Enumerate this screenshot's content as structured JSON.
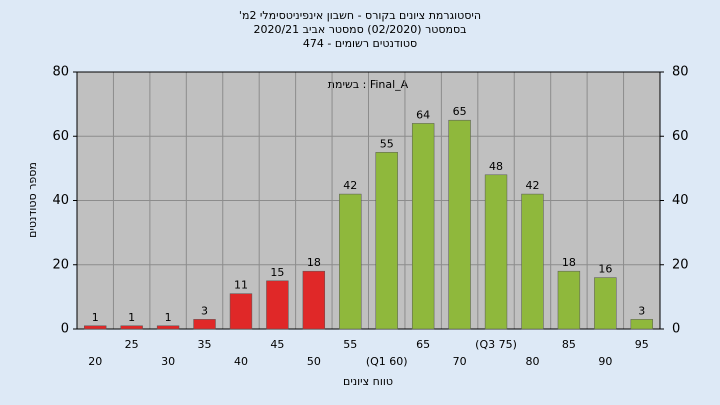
{
  "chart_data": {
    "type": "bar",
    "title": [
      "'היסטוגרמת ציונים בקורס - חשבון אינפיניטסימלי 2מ",
      "בסמסטר  (02/2020)  סמסטר אביב 2020/21",
      "474 - סטודנטים רשומים"
    ],
    "annotation": "בשימת : Final_A",
    "xlabel": "טווח ציונים",
    "ylabel": "מספר סטודנטים",
    "categories": [
      "20",
      "25",
      "30",
      "35",
      "40",
      "45",
      "50",
      "55",
      "(Q1 60)",
      "65",
      "70",
      "(Q3 75)",
      "80",
      "85",
      "90",
      "95"
    ],
    "values": [
      1,
      1,
      1,
      3,
      11,
      15,
      18,
      42,
      55,
      64,
      65,
      48,
      42,
      18,
      16,
      3
    ],
    "colors": [
      "#e02828",
      "#e02828",
      "#e02828",
      "#e02828",
      "#e02828",
      "#e02828",
      "#e02828",
      "#8fb83c",
      "#8fb83c",
      "#8fb83c",
      "#8fb83c",
      "#8fb83c",
      "#8fb83c",
      "#8fb83c",
      "#8fb83c",
      "#8fb83c"
    ],
    "ylim": [
      0,
      80
    ],
    "yticks": [
      0,
      20,
      40,
      60,
      80
    ],
    "y2lim": [
      0,
      80
    ],
    "y2ticks": [
      0,
      20,
      40,
      60,
      80
    ],
    "grid": true
  }
}
